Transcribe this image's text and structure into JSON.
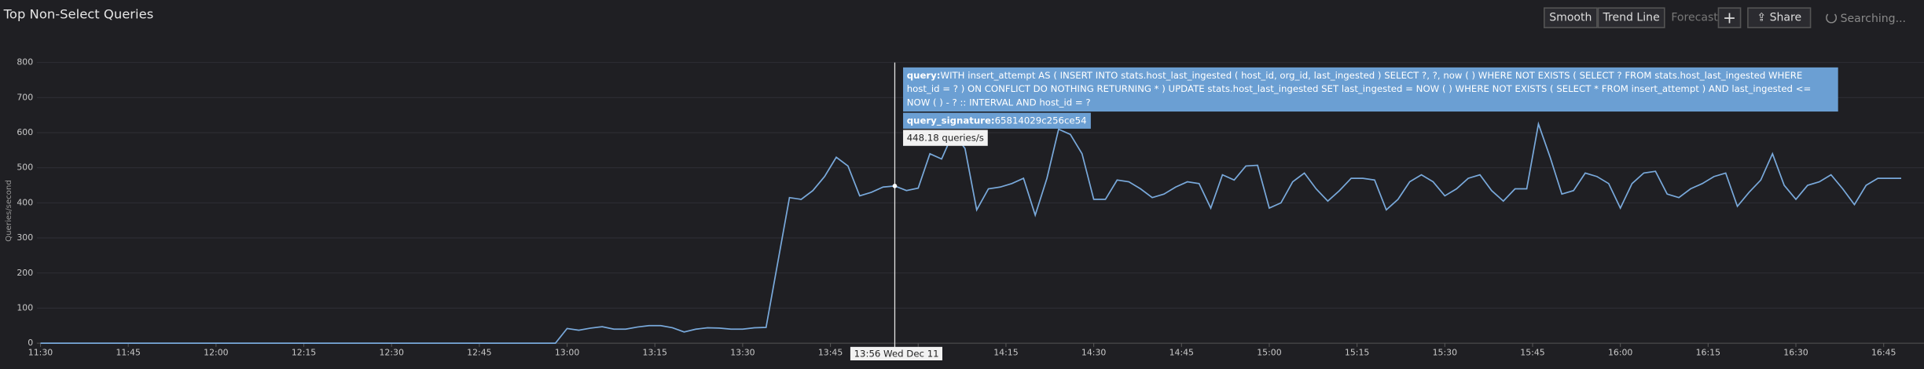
{
  "chart_data": {
    "type": "line",
    "title": "Top Non-Select Queries",
    "y_label": "Queries/second",
    "color": "#79a9db",
    "grid": true,
    "xlim": [
      "11:30",
      "16:50"
    ],
    "xticks": [
      "11:30",
      "11:45",
      "12:00",
      "12:15",
      "12:30",
      "12:45",
      "13:00",
      "13:15",
      "13:30",
      "13:45",
      "14:00",
      "14:15",
      "14:30",
      "14:45",
      "15:00",
      "15:15",
      "15:30",
      "15:45",
      "16:00",
      "16:15",
      "16:30",
      "16:45"
    ],
    "ylim": [
      0,
      800
    ],
    "yticks": [
      0,
      100,
      200,
      300,
      400,
      500,
      600,
      700,
      800
    ],
    "x": [
      "11:30",
      "12:58",
      "13:00",
      "13:02",
      "13:04",
      "13:06",
      "13:08",
      "13:10",
      "13:12",
      "13:14",
      "13:16",
      "13:18",
      "13:20",
      "13:22",
      "13:24",
      "13:26",
      "13:28",
      "13:30",
      "13:32",
      "13:34",
      "13:36",
      "13:38",
      "13:40",
      "13:42",
      "13:44",
      "13:46",
      "13:48",
      "13:50",
      "13:52",
      "13:54",
      "13:56",
      "13:58",
      "14:00",
      "14:02",
      "14:04",
      "14:06",
      "14:08",
      "14:10",
      "14:12",
      "14:14",
      "14:16",
      "14:18",
      "14:20",
      "14:22",
      "14:24",
      "14:26",
      "14:28",
      "14:30",
      "14:32",
      "14:34",
      "14:36",
      "14:38",
      "14:40",
      "14:42",
      "14:44",
      "14:46",
      "14:48",
      "14:50",
      "14:52",
      "14:54",
      "14:56",
      "14:58",
      "15:00",
      "15:02",
      "15:04",
      "15:06",
      "15:08",
      "15:10",
      "15:12",
      "15:14",
      "15:16",
      "15:18",
      "15:20",
      "15:22",
      "15:24",
      "15:26",
      "15:28",
      "15:30",
      "15:32",
      "15:34",
      "15:36",
      "15:38",
      "15:40",
      "15:42",
      "15:44",
      "15:46",
      "15:48",
      "15:50",
      "15:52",
      "15:54",
      "15:56",
      "15:58",
      "16:00",
      "16:02",
      "16:04",
      "16:06",
      "16:08",
      "16:10",
      "16:12",
      "16:14",
      "16:16",
      "16:18",
      "16:20",
      "16:22",
      "16:24",
      "16:26",
      "16:28",
      "16:30",
      "16:32",
      "16:34",
      "16:36",
      "16:38",
      "16:40",
      "16:42",
      "16:44",
      "16:46",
      "16:48"
    ],
    "values": [
      0,
      0,
      42,
      37,
      43,
      47,
      40,
      40,
      46,
      50,
      50,
      44,
      32,
      40,
      44,
      43,
      40,
      40,
      44,
      45,
      230,
      415,
      410,
      435,
      475,
      530,
      505,
      420,
      430,
      445,
      448.18,
      435,
      442,
      540,
      525,
      600,
      555,
      380,
      440,
      445,
      455,
      470,
      365,
      470,
      610,
      595,
      540,
      410,
      410,
      465,
      460,
      440,
      415,
      425,
      445,
      460,
      455,
      385,
      480,
      465,
      505,
      507,
      385,
      400,
      460,
      485,
      440,
      405,
      435,
      470,
      470,
      465,
      380,
      410,
      460,
      480,
      460,
      420,
      440,
      470,
      480,
      435,
      405,
      440,
      440,
      625,
      530,
      425,
      435,
      485,
      475,
      455,
      385,
      455,
      485,
      490,
      425,
      415,
      440,
      455,
      475,
      485,
      390,
      430,
      465,
      540,
      450,
      410,
      450,
      460,
      480,
      440,
      395,
      450,
      470,
      470,
      470
    ],
    "hover_x": "13:56",
    "tooltip": {
      "query_key": "query:",
      "query": "WITH insert_attempt AS ( INSERT INTO stats.host_last_ingested ( host_id,  org_id,  last_ingested ) SELECT ?,  ?,  now ( ) WHERE NOT EXISTS ( SELECT ? FROM stats.host_last_ingested WHERE host_id = ? ) ON CONFLICT DO NOTHING RETURNING * ) UPDATE stats.host_last_ingested SET last_ingested = NOW ( ) WHERE NOT EXISTS ( SELECT * FROM insert_attempt ) AND last_ingested <= NOW ( ) - ? :: INTERVAL AND host_id = ?",
      "signature_key": "query_signature:",
      "signature": "65814029c256ce54",
      "value_label": "448.18 queries/s",
      "time_label": "13:56 Wed Dec 11"
    },
    "toolbar": {
      "smooth": "Smooth",
      "trend": "Trend Line",
      "forecast": "Forecast",
      "plus": "+",
      "share": "Share",
      "status": "Searching..."
    }
  }
}
